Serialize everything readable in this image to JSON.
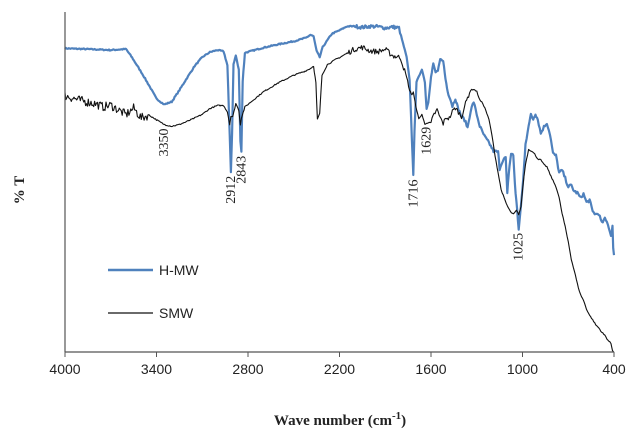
{
  "chart_data": {
    "type": "line",
    "xlabel": "Wave number (cm-1)",
    "ylabel": "% T",
    "xlim": [
      4000,
      400
    ],
    "x_reversed": true,
    "x_ticks": [
      4000,
      3400,
      2800,
      2200,
      1600,
      1000,
      400
    ],
    "ylim": [
      0,
      100
    ],
    "y_ticks_shown": false,
    "grid": false,
    "legend_position": "lower-left",
    "series": [
      {
        "name": "H-MW",
        "color": "#4f81bd",
        "points": [
          [
            4000,
            89.3
          ],
          [
            3800,
            89.0
          ],
          [
            3700,
            88.8
          ],
          [
            3600,
            89.1
          ],
          [
            3560,
            86.6
          ],
          [
            3500,
            82.3
          ],
          [
            3450,
            78.5
          ],
          [
            3400,
            74.5
          ],
          [
            3350,
            72.8
          ],
          [
            3300,
            73.6
          ],
          [
            3250,
            77.0
          ],
          [
            3200,
            80.6
          ],
          [
            3150,
            84.1
          ],
          [
            3100,
            86.7
          ],
          [
            3050,
            88.2
          ],
          [
            3000,
            88.8
          ],
          [
            2960,
            88.4
          ],
          [
            2935,
            84.3
          ],
          [
            2920,
            64.0
          ],
          [
            2912,
            53.0
          ],
          [
            2904,
            64.5
          ],
          [
            2895,
            84.6
          ],
          [
            2880,
            87.2
          ],
          [
            2860,
            83.0
          ],
          [
            2850,
            62.1
          ],
          [
            2843,
            58.9
          ],
          [
            2835,
            79.7
          ],
          [
            2820,
            88.0
          ],
          [
            2700,
            89.5
          ],
          [
            2600,
            90.5
          ],
          [
            2500,
            91.4
          ],
          [
            2420,
            92.4
          ],
          [
            2390,
            93.3
          ],
          [
            2370,
            92.8
          ],
          [
            2350,
            88.5
          ],
          [
            2330,
            86.7
          ],
          [
            2310,
            89.7
          ],
          [
            2250,
            93.6
          ],
          [
            2200,
            94.6
          ],
          [
            2150,
            95.8
          ],
          [
            2100,
            95.8
          ],
          [
            2050,
            95.5
          ],
          [
            2000,
            95.8
          ],
          [
            1950,
            95.7
          ],
          [
            1900,
            95.3
          ],
          [
            1850,
            95.6
          ],
          [
            1810,
            95.3
          ],
          [
            1790,
            91.9
          ],
          [
            1760,
            86.7
          ],
          [
            1740,
            80.1
          ],
          [
            1725,
            62.4
          ],
          [
            1716,
            51.9
          ],
          [
            1708,
            65.2
          ],
          [
            1695,
            79.5
          ],
          [
            1680,
            80.9
          ],
          [
            1660,
            83.2
          ],
          [
            1640,
            79.4
          ],
          [
            1629,
            71.5
          ],
          [
            1618,
            73.5
          ],
          [
            1600,
            80.8
          ],
          [
            1585,
            84.8
          ],
          [
            1570,
            82.3
          ],
          [
            1555,
            82.6
          ],
          [
            1540,
            86.1
          ],
          [
            1520,
            85.7
          ],
          [
            1505,
            80.3
          ],
          [
            1490,
            76.4
          ],
          [
            1475,
            74.8
          ],
          [
            1460,
            72.3
          ],
          [
            1440,
            74.6
          ],
          [
            1425,
            72.0
          ],
          [
            1400,
            69.3
          ],
          [
            1380,
            68.3
          ],
          [
            1360,
            66.0
          ],
          [
            1340,
            71.0
          ],
          [
            1320,
            73.6
          ],
          [
            1300,
            69.8
          ],
          [
            1280,
            66.4
          ],
          [
            1250,
            63.5
          ],
          [
            1220,
            61.5
          ],
          [
            1190,
            59.1
          ],
          [
            1160,
            58.8
          ],
          [
            1150,
            53.9
          ],
          [
            1130,
            56.4
          ],
          [
            1110,
            57.2
          ],
          [
            1100,
            46.4
          ],
          [
            1090,
            52.7
          ],
          [
            1075,
            58.4
          ],
          [
            1060,
            57.8
          ],
          [
            1050,
            49.5
          ],
          [
            1040,
            44.2
          ],
          [
            1025,
            36.2
          ],
          [
            1010,
            42.8
          ],
          [
            995,
            51.1
          ],
          [
            980,
            61.1
          ],
          [
            960,
            66.8
          ],
          [
            945,
            69.7
          ],
          [
            930,
            68.5
          ],
          [
            915,
            70.1
          ],
          [
            900,
            68.4
          ],
          [
            880,
            64.3
          ],
          [
            860,
            66.2
          ],
          [
            840,
            67.4
          ],
          [
            820,
            64.1
          ],
          [
            800,
            58.4
          ],
          [
            780,
            57.7
          ],
          [
            760,
            52.7
          ],
          [
            740,
            53.4
          ],
          [
            720,
            51.1
          ],
          [
            700,
            48.6
          ],
          [
            680,
            49.0
          ],
          [
            660,
            47.2
          ],
          [
            640,
            46.8
          ],
          [
            620,
            45.3
          ],
          [
            600,
            46.5
          ],
          [
            580,
            44.0
          ],
          [
            560,
            44.7
          ],
          [
            540,
            41.3
          ],
          [
            520,
            40.5
          ],
          [
            500,
            40.7
          ],
          [
            480,
            37.9
          ],
          [
            460,
            39.1
          ],
          [
            440,
            37.7
          ],
          [
            420,
            34.2
          ],
          [
            410,
            37.1
          ],
          [
            405,
            30.3
          ],
          [
            400,
            28.5
          ]
        ]
      },
      {
        "name": "SMW",
        "color": "#111111",
        "points": [
          [
            4000,
            75.4
          ],
          [
            3900,
            74.0
          ],
          [
            3800,
            73.0
          ],
          [
            3750,
            72.1
          ],
          [
            3700,
            72.6
          ],
          [
            3650,
            71.2
          ],
          [
            3600,
            69.8
          ],
          [
            3550,
            71.7
          ],
          [
            3500,
            68.8
          ],
          [
            3450,
            69.7
          ],
          [
            3400,
            68.3
          ],
          [
            3350,
            66.9
          ],
          [
            3300,
            66.4
          ],
          [
            3250,
            66.9
          ],
          [
            3200,
            67.8
          ],
          [
            3150,
            68.8
          ],
          [
            3100,
            69.9
          ],
          [
            3050,
            71.6
          ],
          [
            3000,
            72.5
          ],
          [
            2960,
            72.5
          ],
          [
            2935,
            70.6
          ],
          [
            2920,
            67.0
          ],
          [
            2912,
            69.3
          ],
          [
            2900,
            69.2
          ],
          [
            2880,
            73.1
          ],
          [
            2860,
            71.1
          ],
          [
            2850,
            66.8
          ],
          [
            2843,
            68.9
          ],
          [
            2820,
            72.1
          ],
          [
            2700,
            76.5
          ],
          [
            2600,
            79.2
          ],
          [
            2500,
            81.4
          ],
          [
            2420,
            82.7
          ],
          [
            2390,
            83.4
          ],
          [
            2370,
            84.1
          ],
          [
            2355,
            79.2
          ],
          [
            2345,
            68.4
          ],
          [
            2330,
            70.1
          ],
          [
            2315,
            81.4
          ],
          [
            2280,
            84.5
          ],
          [
            2220,
            86.2
          ],
          [
            2200,
            86.6
          ],
          [
            2150,
            87.9
          ],
          [
            2100,
            89.1
          ],
          [
            2050,
            89.6
          ],
          [
            2000,
            88.6
          ],
          [
            1950,
            88.3
          ],
          [
            1900,
            89.0
          ],
          [
            1850,
            87.1
          ],
          [
            1800,
            86.6
          ],
          [
            1780,
            83.7
          ],
          [
            1760,
            80.6
          ],
          [
            1740,
            76.9
          ],
          [
            1725,
            75.7
          ],
          [
            1716,
            76.4
          ],
          [
            1700,
            72.4
          ],
          [
            1680,
            68.5
          ],
          [
            1660,
            69.9
          ],
          [
            1640,
            66.9
          ],
          [
            1629,
            67.4
          ],
          [
            1600,
            67.4
          ],
          [
            1580,
            69.9
          ],
          [
            1560,
            71.2
          ],
          [
            1540,
            68.9
          ],
          [
            1520,
            67.2
          ],
          [
            1500,
            69.0
          ],
          [
            1480,
            68.7
          ],
          [
            1460,
            70.7
          ],
          [
            1440,
            71.8
          ],
          [
            1420,
            70.6
          ],
          [
            1400,
            69.1
          ],
          [
            1380,
            72.2
          ],
          [
            1360,
            74.8
          ],
          [
            1340,
            77.0
          ],
          [
            1320,
            77.3
          ],
          [
            1300,
            76.6
          ],
          [
            1280,
            74.1
          ],
          [
            1260,
            73.1
          ],
          [
            1240,
            71.0
          ],
          [
            1220,
            68.3
          ],
          [
            1200,
            63.7
          ],
          [
            1180,
            57.7
          ],
          [
            1160,
            52.7
          ],
          [
            1140,
            47.8
          ],
          [
            1120,
            45.2
          ],
          [
            1100,
            43.0
          ],
          [
            1080,
            41.3
          ],
          [
            1060,
            40.5
          ],
          [
            1040,
            41.6
          ],
          [
            1025,
            40.5
          ],
          [
            1010,
            42.6
          ],
          [
            995,
            49.9
          ],
          [
            980,
            55.3
          ],
          [
            960,
            59.6
          ],
          [
            940,
            59.1
          ],
          [
            920,
            58.2
          ],
          [
            900,
            56.8
          ],
          [
            880,
            56.5
          ],
          [
            860,
            55.1
          ],
          [
            840,
            54.5
          ],
          [
            820,
            52.3
          ],
          [
            800,
            50.4
          ],
          [
            780,
            48.6
          ],
          [
            760,
            45.4
          ],
          [
            740,
            40.7
          ],
          [
            720,
            36.8
          ],
          [
            700,
            32.4
          ],
          [
            680,
            27.3
          ],
          [
            660,
            23.8
          ],
          [
            640,
            20.0
          ],
          [
            620,
            16.9
          ],
          [
            600,
            15.2
          ],
          [
            580,
            12.6
          ],
          [
            560,
            10.8
          ],
          [
            540,
            9.5
          ],
          [
            520,
            8.0
          ],
          [
            500,
            7.1
          ],
          [
            480,
            5.8
          ],
          [
            460,
            4.9
          ],
          [
            440,
            3.5
          ],
          [
            420,
            2.5
          ],
          [
            410,
            0.5
          ],
          [
            400,
            0.0
          ]
        ]
      }
    ],
    "annotations": [
      {
        "text": "3350",
        "x": 3350
      },
      {
        "text": "2912",
        "x": 2912
      },
      {
        "text": "2843",
        "x": 2843
      },
      {
        "text": "1716",
        "x": 1716
      },
      {
        "text": "1629",
        "x": 1629
      },
      {
        "text": "1025",
        "x": 1025
      }
    ]
  }
}
